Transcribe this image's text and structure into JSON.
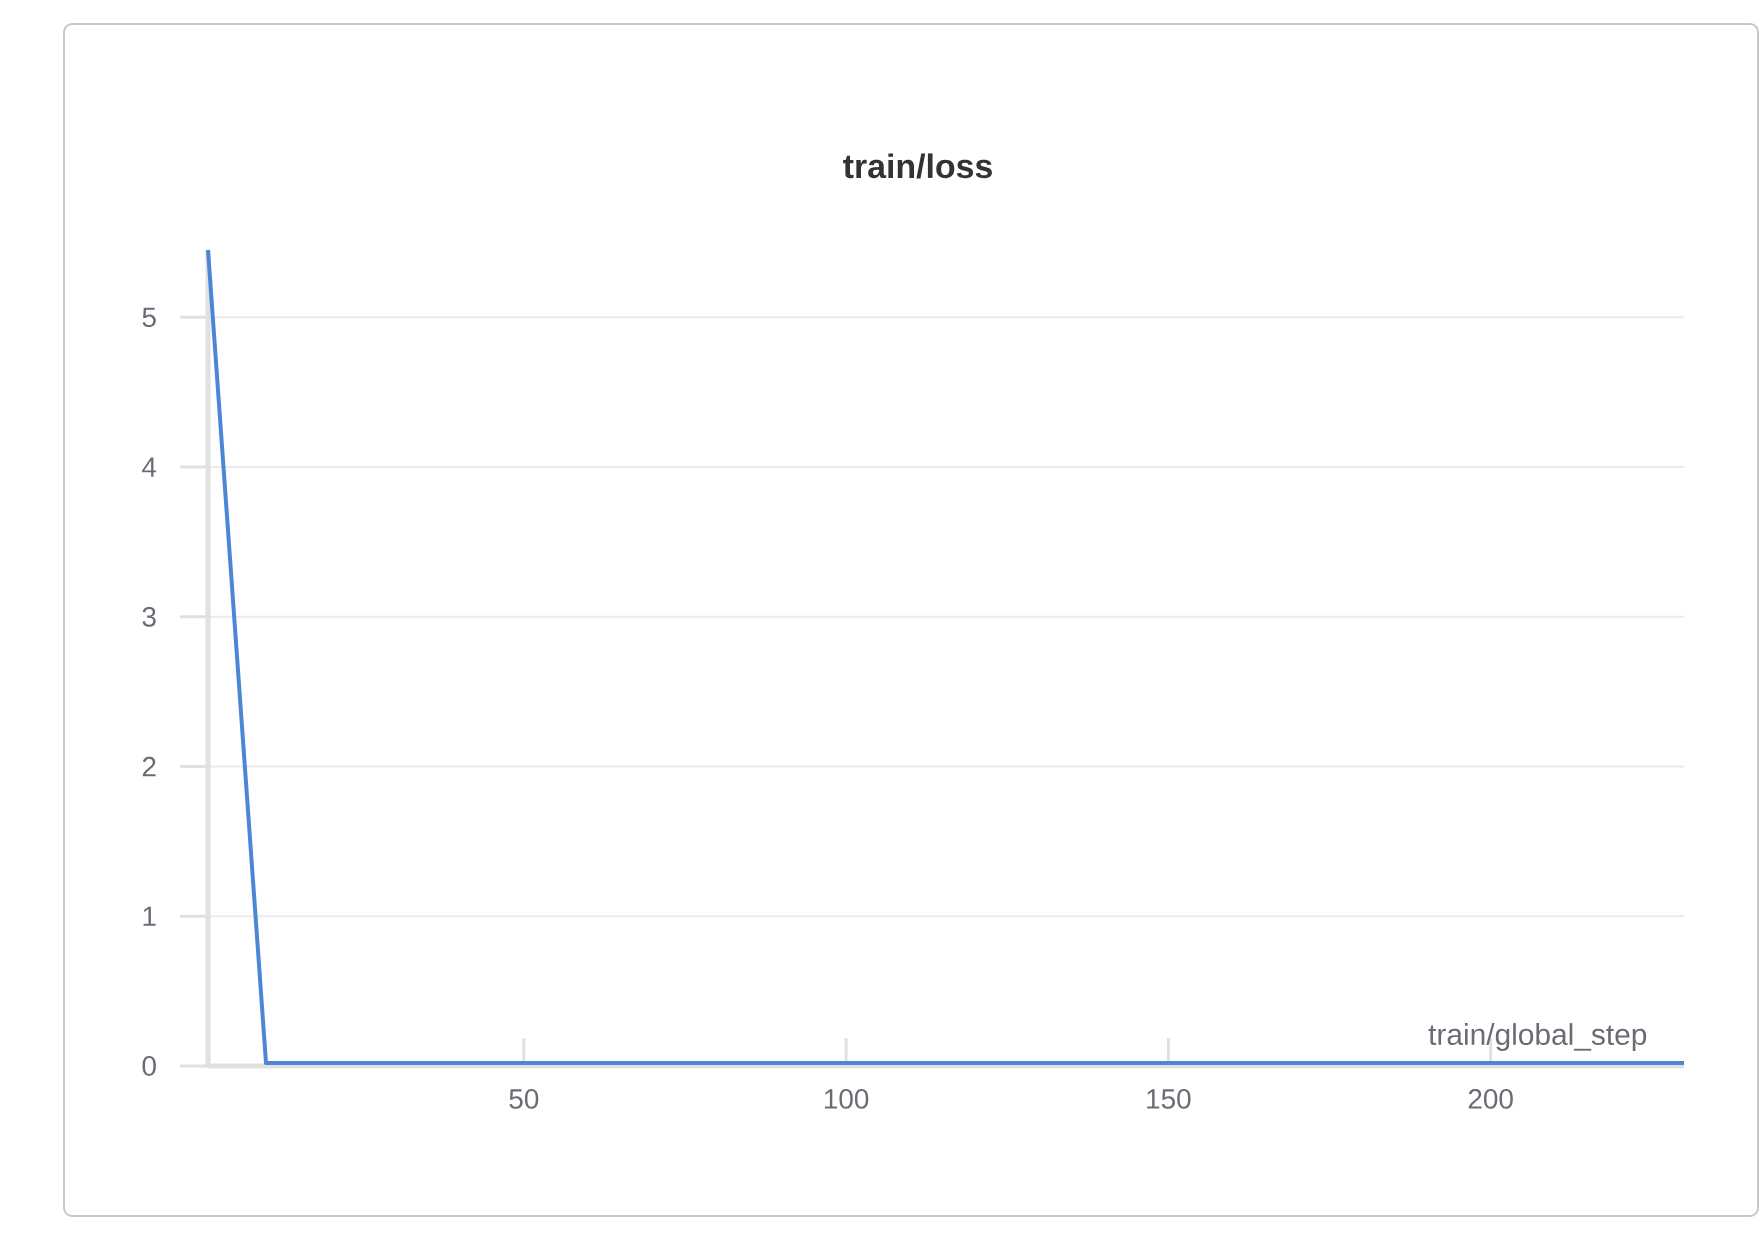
{
  "chart_data": {
    "type": "line",
    "title": "train/loss",
    "xlabel": "train/global_step",
    "x": [
      1,
      10,
      230
    ],
    "values": [
      5.45,
      0.02,
      0.02
    ],
    "color": "#4a87d6",
    "xlim": [
      1,
      230
    ],
    "ylim": [
      0,
      5.45
    ],
    "xticks": [
      50,
      100,
      150,
      200
    ],
    "yticks": [
      0,
      1,
      2,
      3,
      4,
      5
    ],
    "grid": "y"
  }
}
